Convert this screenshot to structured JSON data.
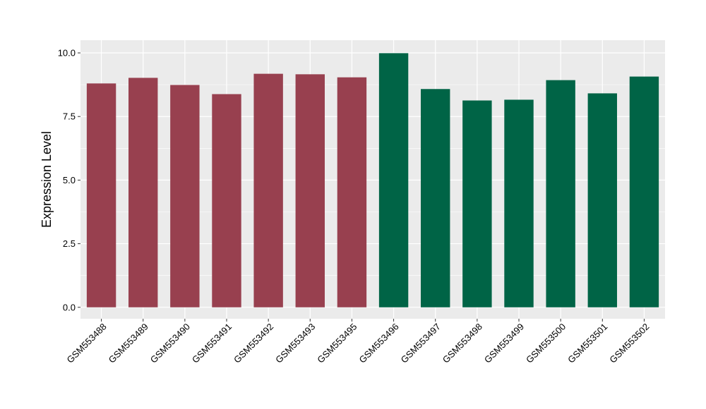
{
  "chart_data": {
    "type": "bar",
    "title": "",
    "xlabel": "",
    "ylabel": "Expression Level",
    "ylim": [
      -0.45,
      10.5
    ],
    "yticks": [
      0.0,
      2.5,
      5.0,
      7.5,
      10.0
    ],
    "ytick_labels": [
      "0.0",
      "2.5",
      "5.0",
      "7.5",
      "10.0"
    ],
    "grid": true,
    "legend": "none",
    "categories": [
      "GSM553488",
      "GSM553489",
      "GSM553490",
      "GSM553491",
      "GSM553492",
      "GSM553493",
      "GSM553495",
      "GSM553496",
      "GSM553497",
      "GSM553498",
      "GSM553499",
      "GSM553500",
      "GSM553501",
      "GSM553502"
    ],
    "values": [
      8.8,
      9.02,
      8.74,
      8.38,
      9.18,
      9.16,
      9.04,
      9.99,
      8.58,
      8.13,
      8.16,
      8.93,
      8.41,
      9.07
    ],
    "bar_colors": [
      "#98404f",
      "#98404f",
      "#98404f",
      "#98404f",
      "#98404f",
      "#98404f",
      "#98404f",
      "#006446",
      "#006446",
      "#006446",
      "#006446",
      "#006446",
      "#006446",
      "#006446"
    ],
    "panel_background": "#ebebeb",
    "grid_color": "#ffffff"
  }
}
